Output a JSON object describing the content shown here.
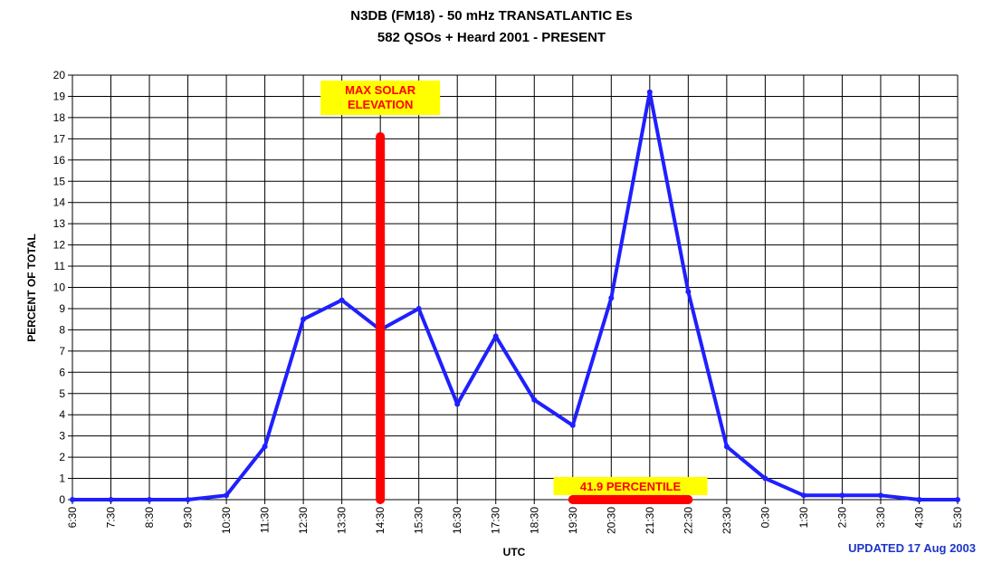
{
  "chart_data": {
    "type": "line",
    "title": "N3DB (FM18) - 50 mHz TRANSATLANTIC Es",
    "subtitle": "582 QSOs + Heard 2001 - PRESENT",
    "xlabel": "UTC",
    "ylabel": "PERCENT OF TOTAL",
    "ylim": [
      0,
      20
    ],
    "y_ticks": [
      "0",
      "1",
      "2",
      "3",
      "4",
      "5",
      "6",
      "7",
      "8",
      "9",
      "10",
      "11",
      "12",
      "13",
      "14",
      "15",
      "16",
      "17",
      "18",
      "19",
      "20"
    ],
    "categories": [
      "6:30",
      "7:30",
      "8:30",
      "9:30",
      "10:30",
      "11:30",
      "12:30",
      "13:30",
      "14:30",
      "15:30",
      "16:30",
      "17:30",
      "18:30",
      "19:30",
      "20:30",
      "21:30",
      "22:30",
      "23:30",
      "0:30",
      "1:30",
      "2:30",
      "3:30",
      "4:30",
      "5:30"
    ],
    "grid": true,
    "series": [
      {
        "color": "#1f1fff",
        "values": [
          0,
          0,
          0,
          0,
          0.2,
          2.5,
          8.5,
          9.4,
          8.0,
          9.0,
          4.5,
          7.7,
          4.7,
          3.5,
          9.5,
          19.2,
          9.8,
          2.5,
          1.0,
          0.2,
          0.2,
          0.2,
          0,
          0
        ]
      }
    ],
    "annotations": [
      {
        "text_lines": [
          "MAX SOLAR",
          "ELEVATION"
        ],
        "type": "vertical-bar",
        "x": "14:30",
        "y_from": 0,
        "y_to": 17.1,
        "color": "#ff0000",
        "box_color": "#ffff00"
      },
      {
        "text": "41.9 PERCENTILE",
        "type": "horizontal-bar",
        "x_from": "19:30",
        "x_to": "22:30",
        "y": 0,
        "color": "#ff0000",
        "box_color": "#ffff00"
      }
    ],
    "note": "UPDATED 17 Aug 2003"
  }
}
